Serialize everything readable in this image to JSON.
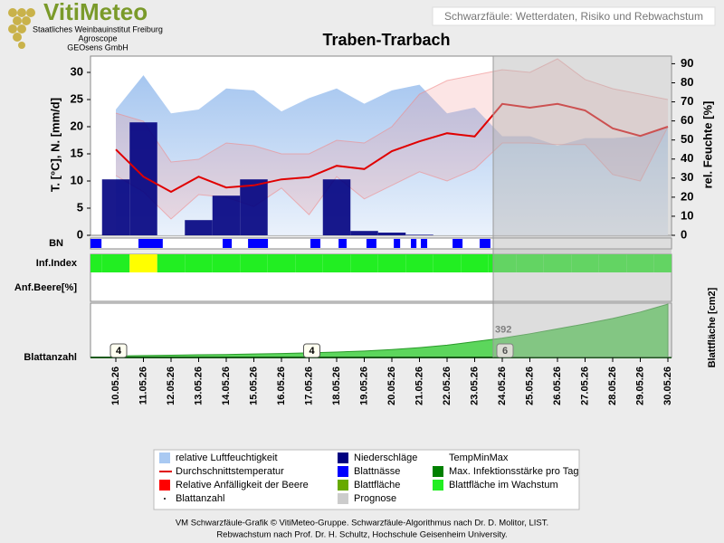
{
  "header": {
    "logo": "VitiMeteo",
    "lines": [
      "Staatliches Weinbauinstitut Freiburg",
      "Agroscope",
      "GEOsens GmbH"
    ],
    "banner": "Schwarzfäule: Wetterdaten, Risiko und Rebwachstum"
  },
  "chart_data": {
    "type": "combo",
    "title": "Traben-Trarbach",
    "categories": [
      "10.05.26",
      "11.05.26",
      "12.05.26",
      "13.05.26",
      "14.05.26",
      "15.05.26",
      "16.05.26",
      "17.05.26",
      "18.05.26",
      "19.05.26",
      "20.05.26",
      "21.05.26",
      "22.05.26",
      "23.05.26",
      "24.05.26",
      "25.05.26",
      "26.05.26",
      "27.05.26",
      "28.05.26",
      "29.05.26",
      "30.05.26"
    ],
    "ylabel": "T. [°C], N. [mm/d]",
    "y2label": "rel. Feuchte [%]",
    "ylim": [
      0,
      33
    ],
    "yticks": [
      0,
      5,
      10,
      15,
      20,
      25,
      30
    ],
    "y2lim": [
      0,
      94
    ],
    "y2ticks": [
      0,
      10,
      20,
      30,
      40,
      50,
      60,
      70,
      80,
      90
    ],
    "grid": false,
    "humidity": {
      "axis": "y2",
      "color": "#a9c9f2",
      "values": [
        66,
        84,
        64,
        66,
        77,
        76,
        65,
        72,
        77,
        69,
        76,
        79,
        64,
        67,
        52,
        52,
        47,
        51,
        51,
        52,
        57
      ]
    },
    "temp_range": {
      "color": "#f08a8a",
      "min": [
        11,
        8,
        3,
        7.5,
        7,
        5.3,
        8.7,
        3.8,
        10.8,
        6.7,
        9.2,
        11.7,
        10,
        12.2,
        17,
        17,
        16.7,
        16.7,
        11.2,
        10,
        20
      ],
      "max": [
        22.5,
        21,
        13.5,
        14,
        17,
        16.5,
        15,
        15,
        17.5,
        17,
        20,
        26,
        28.5,
        29.5,
        30.5,
        30,
        32.5,
        28.7,
        27,
        26,
        25
      ]
    },
    "temp_avg": {
      "color": "#e00000",
      "values": [
        15.8,
        10.8,
        8,
        10.8,
        8.8,
        9.2,
        10.3,
        10.7,
        12.8,
        12.2,
        15.5,
        17.3,
        18.8,
        18.2,
        24.2,
        23.5,
        24.2,
        23,
        19.7,
        18.3,
        20
      ]
    },
    "precipitation": {
      "color": "#000080",
      "values": [
        10.3,
        20.8,
        0,
        2.8,
        7.3,
        10.3,
        0,
        0,
        10.3,
        0.8,
        0.5,
        0.1,
        0,
        0,
        0,
        0,
        0,
        0,
        0,
        0,
        0
      ]
    },
    "leaf_wetness": {
      "label": "BN",
      "color": "#0000ff",
      "periods": [
        [
          -0.92,
          -0.52
        ],
        [
          0.82,
          1.7
        ],
        [
          3.87,
          4.2
        ],
        [
          4.79,
          5.51
        ],
        [
          7.05,
          7.41
        ],
        [
          8.07,
          8.36
        ],
        [
          9.08,
          9.44
        ],
        [
          10.07,
          10.3
        ],
        [
          10.69,
          10.89
        ],
        [
          11.05,
          11.28
        ],
        [
          12.2,
          12.56
        ],
        [
          13.18,
          13.57
        ]
      ]
    },
    "infection_index": {
      "label": "Inf.Index",
      "colors": [
        "#22ee22",
        "#ffff00"
      ],
      "levels": [
        0,
        1,
        0,
        0,
        0,
        0,
        0,
        0,
        0,
        0,
        0,
        0,
        0,
        0,
        0,
        0,
        0,
        0,
        0,
        0,
        0
      ]
    },
    "berry_susceptibility": {
      "label": "Anf.Beere[%]"
    },
    "leaf_area": {
      "label": "Blattfläche [cm2]",
      "color": "#5cd65c",
      "ylim": [
        0,
        1100
      ],
      "label_at": "24.05.26",
      "values": [
        30,
        40,
        45,
        55,
        60,
        70,
        80,
        95,
        110,
        130,
        160,
        200,
        250,
        320,
        392,
        480,
        580,
        680,
        790,
        920,
        1080
      ]
    },
    "leaf_count": {
      "label": "Blattanzahl",
      "x": [
        "10.05.26",
        "17.05.26",
        "24.05.26"
      ],
      "values": [
        4,
        4,
        6
      ]
    },
    "forecast": {
      "from": "24.05.26",
      "color": "#b4b4b4"
    },
    "legend_items": [
      {
        "name": "relative Luftfeuchtigkeit",
        "color": "#a9c9f2",
        "symbol": "box"
      },
      {
        "name": "Niederschläge",
        "color": "#000080",
        "symbol": "box"
      },
      {
        "name": "TempMinMax",
        "color": "#ffffff",
        "symbol": "none"
      },
      {
        "name": "Durchschnittstemperatur",
        "color": "#e00000",
        "symbol": "line"
      },
      {
        "name": "Blattnässe",
        "color": "#0000ff",
        "symbol": "box"
      },
      {
        "name": "Max. Infektionsstärke pro Tag",
        "color": "#008000",
        "symbol": "box"
      },
      {
        "name": "Relative Anfälligkeit der Beere",
        "color": "#ff0000",
        "symbol": "box"
      },
      {
        "name": "Blattfläche",
        "color": "#66aa00",
        "symbol": "box"
      },
      {
        "name": "Blattfläche im Wachstum",
        "color": "#22ee22",
        "symbol": "box"
      },
      {
        "name": "Blattanzahl",
        "color": "#000000",
        "symbol": "dot"
      },
      {
        "name": "Prognose",
        "color": "#cccccc",
        "symbol": "box"
      }
    ]
  },
  "footer": [
    "VM Schwarzfäule-Grafik © VitiMeteo-Gruppe. Schwarzfäule-Algorithmus nach Dr. D. Molitor, LIST.",
    "Rebwachstum nach Prof. Dr. H. Schultz, Hochschule Geisenheim University."
  ]
}
